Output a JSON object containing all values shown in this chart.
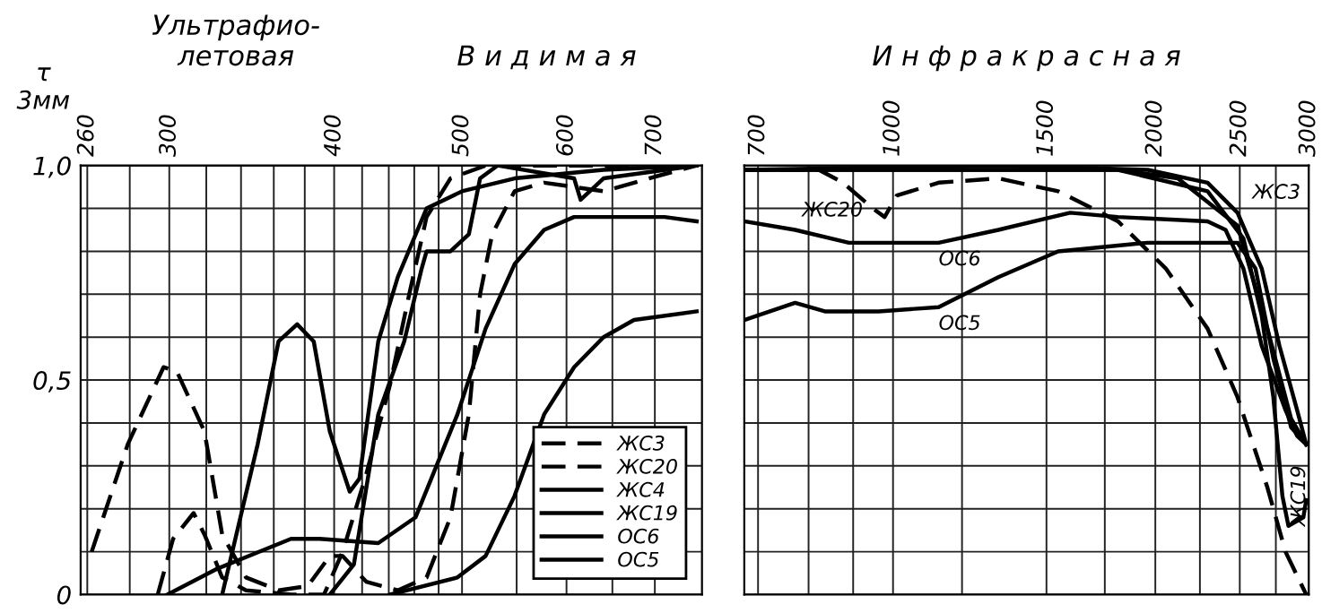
{
  "chart_data": [
    {
      "type": "line",
      "ylabel": "τ\n3мм",
      "annotations": [
        "Ультрафио-\nлетовая",
        "В и д и м а я"
      ],
      "log": "x",
      "grid": true,
      "legend": "bottom right",
      "marker": "none",
      "xlim": [
        257,
        760
      ],
      "xticks": [
        260,
        300,
        400,
        500,
        600,
        700,
        {
          "value": 280,
          "label": null
        },
        {
          "value": 320,
          "label": null
        },
        {
          "value": 340,
          "label": null
        },
        {
          "value": 360,
          "label": null
        },
        {
          "value": 380,
          "label": null
        },
        {
          "value": 420,
          "label": null
        },
        {
          "value": 440,
          "label": null
        },
        {
          "value": 460,
          "label": null
        },
        {
          "value": 480,
          "label": null
        },
        {
          "value": 550,
          "label": null
        },
        {
          "value": 650,
          "label": null
        }
      ],
      "ylim": [
        0,
        1
      ],
      "yticks": [
        {
          "value": 0,
          "label": "0"
        },
        {
          "value": 0.5,
          "label": "0,5"
        },
        {
          "value": 1.0,
          "label": "1,0"
        },
        {
          "value": 0.1,
          "label": null
        },
        {
          "value": 0.2,
          "label": null
        },
        {
          "value": 0.3,
          "label": null
        },
        {
          "value": 0.4,
          "label": null
        },
        {
          "value": 0.6,
          "label": null
        },
        {
          "value": 0.7,
          "label": null
        },
        {
          "value": 0.8,
          "label": null
        },
        {
          "value": 0.9,
          "label": null
        }
      ],
      "series": [
        {
          "name": "ЖС3",
          "color": "#000000",
          "line_style": "dashed",
          "x": [
            294,
            302,
            313,
            319,
            329,
            343,
            371,
            393,
            406,
            423,
            441,
            456,
            470,
            490,
            521,
            753
          ],
          "values": [
            0,
            0.13,
            0.19,
            0.14,
            0.04,
            0.01,
            0.0,
            0.0,
            0.1,
            0.28,
            0.49,
            0.7,
            0.88,
            0.97,
            1.0,
            1.0
          ]
        },
        {
          "name": "ЖС20",
          "color": "#000000",
          "line_style": "dashed",
          "x": [
            262,
            279,
            297,
            304,
            319,
            329,
            343,
            363,
            382,
            397,
            406,
            423,
            447,
            470,
            490,
            506,
            516,
            527,
            548,
            577,
            608,
            640,
            712,
            753
          ],
          "values": [
            0.1,
            0.35,
            0.53,
            0.52,
            0.38,
            0.14,
            0.04,
            0.01,
            0.02,
            0.09,
            0.09,
            0.03,
            0.01,
            0.04,
            0.18,
            0.42,
            0.7,
            0.84,
            0.94,
            0.96,
            0.95,
            0.94,
            0.98,
            1.0
          ]
        },
        {
          "name": "ЖС4",
          "color": "#000000",
          "line_style": "solid",
          "x": [
            329,
            350,
            363,
            375,
            386,
            397,
            411,
            418,
            432,
            447,
            470,
            500,
            548,
            640,
            753
          ],
          "values": [
            0,
            0.35,
            0.59,
            0.63,
            0.59,
            0.38,
            0.24,
            0.27,
            0.59,
            0.74,
            0.9,
            0.94,
            0.97,
            0.99,
            1.0
          ]
        },
        {
          "name": "ЖС19",
          "color": "#000000",
          "line_style": "solid",
          "x": [
            397,
            414,
            432,
            452,
            466,
            470,
            490,
            506,
            516,
            532,
            608,
            615,
            640,
            753
          ],
          "values": [
            0,
            0.07,
            0.42,
            0.59,
            0.76,
            0.8,
            0.8,
            0.84,
            0.97,
            1.0,
            0.97,
            0.92,
            0.97,
            1.0
          ]
        },
        {
          "name": "ОС6",
          "color": "#000000",
          "line_style": "solid",
          "x": [
            299,
            326,
            371,
            390,
            432,
            461,
            496,
            521,
            548,
            577,
            608,
            712,
            753
          ],
          "values": [
            0,
            0.06,
            0.13,
            0.13,
            0.12,
            0.18,
            0.42,
            0.62,
            0.77,
            0.85,
            0.88,
            0.88,
            0.87
          ]
        },
        {
          "name": "ОС5",
          "color": "#000000",
          "line_style": "solid",
          "x": [
            441,
            496,
            521,
            548,
            577,
            608,
            640,
            675,
            753
          ],
          "values": [
            0,
            0.04,
            0.09,
            0.23,
            0.42,
            0.53,
            0.6,
            0.64,
            0.66
          ]
        }
      ]
    },
    {
      "type": "line",
      "annotations": [
        "И н ф р а к р а с н а я"
      ],
      "log": "x",
      "grid": true,
      "legend": false,
      "marker": "none",
      "tick_labels": "x",
      "xlim": [
        675,
        3000
      ],
      "xticks": [
        700,
        1000,
        1500,
        2000,
        2500,
        3000,
        {
          "value": 800,
          "label": null
        },
        {
          "value": 900,
          "label": null
        },
        {
          "value": 1200,
          "label": null
        },
        {
          "value": 1750,
          "label": null
        },
        {
          "value": 2250,
          "label": null
        },
        {
          "value": 2750,
          "label": null
        }
      ],
      "ylim": [
        0,
        1
      ],
      "yticks": [
        {
          "value": 0,
          "label": null
        },
        {
          "value": 0.1,
          "label": null
        },
        {
          "value": 0.2,
          "label": null
        },
        {
          "value": 0.3,
          "label": null
        },
        {
          "value": 0.4,
          "label": null
        },
        {
          "value": 0.5,
          "label": null
        },
        {
          "value": 0.6,
          "label": null
        },
        {
          "value": 0.7,
          "label": null
        },
        {
          "value": 0.8,
          "label": null
        },
        {
          "value": 0.9,
          "label": null
        },
        {
          "value": 1.0,
          "label": null
        }
      ],
      "series": [
        {
          "name": "ЖС20",
          "color": "#000000",
          "line_style": "dashed",
          "x": [
            675,
            822,
            876,
            948,
            978,
            1010,
            1128,
            1321,
            1547,
            1812,
            2056,
            2296,
            2485,
            2689,
            2821,
            2980
          ],
          "values": [
            0.99,
            0.99,
            0.96,
            0.9,
            0.88,
            0.93,
            0.96,
            0.97,
            0.94,
            0.87,
            0.76,
            0.62,
            0.46,
            0.25,
            0.1,
            0.0
          ]
        },
        {
          "name": "ОС6",
          "color": "#000000",
          "line_style": "solid",
          "x": [
            675,
            772,
            890,
            1128,
            1321,
            1597,
            1812,
            2296,
            2408,
            2524,
            2649,
            2821,
            2909,
            2980
          ],
          "values": [
            0.87,
            0.85,
            0.82,
            0.82,
            0.85,
            0.89,
            0.88,
            0.87,
            0.85,
            0.76,
            0.58,
            0.43,
            0.37,
            0.35
          ]
        },
        {
          "name": "ОС5",
          "color": "#000000",
          "line_style": "solid",
          "x": [
            675,
            772,
            835,
            963,
            1128,
            1321,
            1547,
            1960,
            2485,
            2606,
            2732,
            2863,
            2980
          ],
          "values": [
            0.64,
            0.68,
            0.66,
            0.66,
            0.67,
            0.74,
            0.8,
            0.82,
            0.82,
            0.76,
            0.55,
            0.39,
            0.35
          ]
        },
        {
          "name": "ЖС3",
          "color": "#000000",
          "line_style": "solid",
          "x": [
            675,
            1321,
            1960,
            2296,
            2485,
            2649,
            2776,
            2909,
            2980
          ],
          "values": [
            0.99,
            1.0,
            0.99,
            0.96,
            0.89,
            0.76,
            0.58,
            0.43,
            0.35
          ]
        },
        {
          "name": "ЖС19",
          "color": "#000000",
          "line_style": "solid",
          "x": [
            675,
            1812,
            2296,
            2524,
            2649,
            2732,
            2798,
            2843,
            2957,
            2980
          ],
          "values": [
            0.99,
            0.99,
            0.94,
            0.83,
            0.65,
            0.46,
            0.23,
            0.16,
            0.18,
            0.22
          ]
        },
        {
          "color": "#000000",
          "line_style": "solid",
          "x": [
            675,
            1812,
            2122,
            2485,
            2689,
            2863,
            2980
          ],
          "values": [
            0.99,
            0.99,
            0.97,
            0.86,
            0.62,
            0.41,
            0.35
          ]
        }
      ]
    }
  ]
}
